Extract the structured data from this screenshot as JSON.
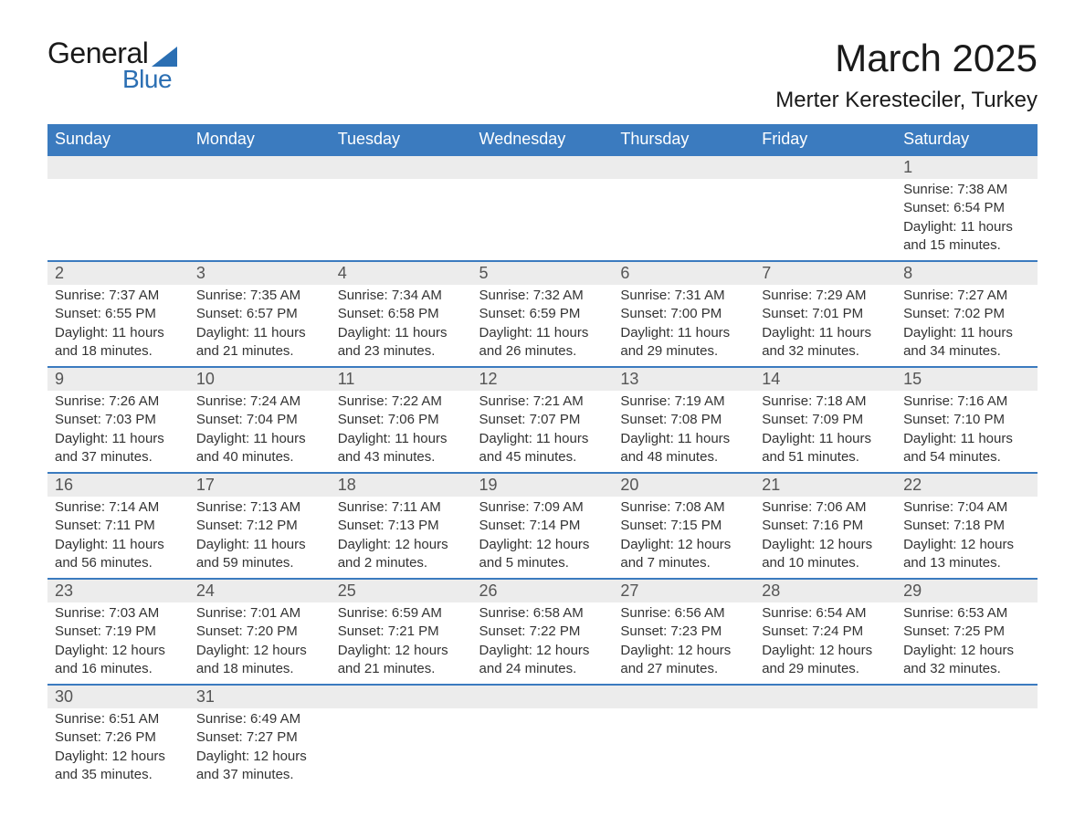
{
  "brand": {
    "line1": "General",
    "line2": "Blue",
    "accent": "#2b6fb3"
  },
  "title": "March 2025",
  "location": "Merter Keresteciler, Turkey",
  "colors": {
    "header_bg": "#3b7bbf",
    "header_text": "#ffffff",
    "daynum_bg": "#ececec",
    "daynum_border": "#3b7bbf",
    "body_text": "#333333",
    "daynum_text": "#555555",
    "page_bg": "#ffffff"
  },
  "font": {
    "family": "Arial",
    "title_size": 42,
    "location_size": 24,
    "header_size": 18,
    "cell_size": 15
  },
  "day_headers": [
    "Sunday",
    "Monday",
    "Tuesday",
    "Wednesday",
    "Thursday",
    "Friday",
    "Saturday"
  ],
  "weeks": [
    [
      null,
      null,
      null,
      null,
      null,
      null,
      {
        "n": "1",
        "sunrise": "7:38 AM",
        "sunset": "6:54 PM",
        "daylight": "11 hours and 15 minutes."
      }
    ],
    [
      {
        "n": "2",
        "sunrise": "7:37 AM",
        "sunset": "6:55 PM",
        "daylight": "11 hours and 18 minutes."
      },
      {
        "n": "3",
        "sunrise": "7:35 AM",
        "sunset": "6:57 PM",
        "daylight": "11 hours and 21 minutes."
      },
      {
        "n": "4",
        "sunrise": "7:34 AM",
        "sunset": "6:58 PM",
        "daylight": "11 hours and 23 minutes."
      },
      {
        "n": "5",
        "sunrise": "7:32 AM",
        "sunset": "6:59 PM",
        "daylight": "11 hours and 26 minutes."
      },
      {
        "n": "6",
        "sunrise": "7:31 AM",
        "sunset": "7:00 PM",
        "daylight": "11 hours and 29 minutes."
      },
      {
        "n": "7",
        "sunrise": "7:29 AM",
        "sunset": "7:01 PM",
        "daylight": "11 hours and 32 minutes."
      },
      {
        "n": "8",
        "sunrise": "7:27 AM",
        "sunset": "7:02 PM",
        "daylight": "11 hours and 34 minutes."
      }
    ],
    [
      {
        "n": "9",
        "sunrise": "7:26 AM",
        "sunset": "7:03 PM",
        "daylight": "11 hours and 37 minutes."
      },
      {
        "n": "10",
        "sunrise": "7:24 AM",
        "sunset": "7:04 PM",
        "daylight": "11 hours and 40 minutes."
      },
      {
        "n": "11",
        "sunrise": "7:22 AM",
        "sunset": "7:06 PM",
        "daylight": "11 hours and 43 minutes."
      },
      {
        "n": "12",
        "sunrise": "7:21 AM",
        "sunset": "7:07 PM",
        "daylight": "11 hours and 45 minutes."
      },
      {
        "n": "13",
        "sunrise": "7:19 AM",
        "sunset": "7:08 PM",
        "daylight": "11 hours and 48 minutes."
      },
      {
        "n": "14",
        "sunrise": "7:18 AM",
        "sunset": "7:09 PM",
        "daylight": "11 hours and 51 minutes."
      },
      {
        "n": "15",
        "sunrise": "7:16 AM",
        "sunset": "7:10 PM",
        "daylight": "11 hours and 54 minutes."
      }
    ],
    [
      {
        "n": "16",
        "sunrise": "7:14 AM",
        "sunset": "7:11 PM",
        "daylight": "11 hours and 56 minutes."
      },
      {
        "n": "17",
        "sunrise": "7:13 AM",
        "sunset": "7:12 PM",
        "daylight": "11 hours and 59 minutes."
      },
      {
        "n": "18",
        "sunrise": "7:11 AM",
        "sunset": "7:13 PM",
        "daylight": "12 hours and 2 minutes."
      },
      {
        "n": "19",
        "sunrise": "7:09 AM",
        "sunset": "7:14 PM",
        "daylight": "12 hours and 5 minutes."
      },
      {
        "n": "20",
        "sunrise": "7:08 AM",
        "sunset": "7:15 PM",
        "daylight": "12 hours and 7 minutes."
      },
      {
        "n": "21",
        "sunrise": "7:06 AM",
        "sunset": "7:16 PM",
        "daylight": "12 hours and 10 minutes."
      },
      {
        "n": "22",
        "sunrise": "7:04 AM",
        "sunset": "7:18 PM",
        "daylight": "12 hours and 13 minutes."
      }
    ],
    [
      {
        "n": "23",
        "sunrise": "7:03 AM",
        "sunset": "7:19 PM",
        "daylight": "12 hours and 16 minutes."
      },
      {
        "n": "24",
        "sunrise": "7:01 AM",
        "sunset": "7:20 PM",
        "daylight": "12 hours and 18 minutes."
      },
      {
        "n": "25",
        "sunrise": "6:59 AM",
        "sunset": "7:21 PM",
        "daylight": "12 hours and 21 minutes."
      },
      {
        "n": "26",
        "sunrise": "6:58 AM",
        "sunset": "7:22 PM",
        "daylight": "12 hours and 24 minutes."
      },
      {
        "n": "27",
        "sunrise": "6:56 AM",
        "sunset": "7:23 PM",
        "daylight": "12 hours and 27 minutes."
      },
      {
        "n": "28",
        "sunrise": "6:54 AM",
        "sunset": "7:24 PM",
        "daylight": "12 hours and 29 minutes."
      },
      {
        "n": "29",
        "sunrise": "6:53 AM",
        "sunset": "7:25 PM",
        "daylight": "12 hours and 32 minutes."
      }
    ],
    [
      {
        "n": "30",
        "sunrise": "6:51 AM",
        "sunset": "7:26 PM",
        "daylight": "12 hours and 35 minutes."
      },
      {
        "n": "31",
        "sunrise": "6:49 AM",
        "sunset": "7:27 PM",
        "daylight": "12 hours and 37 minutes."
      },
      null,
      null,
      null,
      null,
      null
    ]
  ],
  "labels": {
    "sunrise": "Sunrise: ",
    "sunset": "Sunset: ",
    "daylight": "Daylight: "
  }
}
